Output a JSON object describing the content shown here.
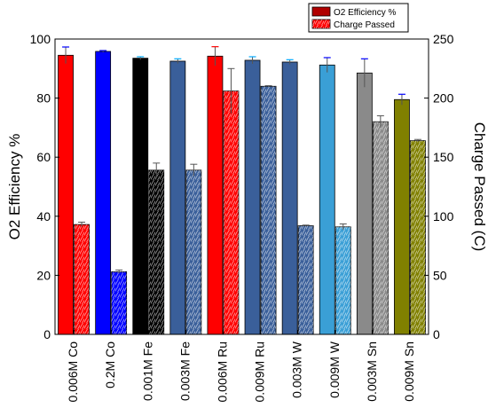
{
  "chart_data": {
    "type": "bar",
    "categories": [
      "0.006M Co",
      "0.2M Co",
      "0.001M Fe",
      "0.003M Fe",
      "0.006M Ru",
      "0.009M Ru",
      "0.003M W",
      "0.009M W",
      "0.003M Sn",
      "0.009M Sn"
    ],
    "series": [
      {
        "name": "O2 Efficiency %",
        "axis": "left",
        "values": [
          94.5,
          95.8,
          93.5,
          92.5,
          94.2,
          92.8,
          92.2,
          91.2,
          88.5,
          79.5
        ],
        "errors": [
          2.8,
          0.3,
          0.5,
          0.8,
          3.2,
          1.2,
          0.8,
          2.5,
          4.8,
          1.8
        ],
        "pattern": "solid"
      },
      {
        "name": "Charge Passed",
        "axis": "right",
        "values": [
          93,
          53,
          139,
          139,
          206,
          210,
          92,
          91,
          180,
          164
        ],
        "errors": [
          2,
          1.5,
          6,
          5,
          19,
          0.5,
          0.5,
          2.5,
          5,
          1
        ],
        "pattern": "hatched"
      }
    ],
    "bar_colors": [
      "#ff0000",
      "#0000ff",
      "#000000",
      "#3a5f9a",
      "#ff0000",
      "#3a5f9a",
      "#3a5f9a",
      "#3a9fd6",
      "#8a8a8a",
      "#808000"
    ],
    "ylabel": "O2 Efficiency %",
    "y2label": "Charge Passed (C)",
    "ylim": [
      0,
      100
    ],
    "y2lim": [
      0,
      250
    ],
    "yticks": [
      0,
      20,
      40,
      60,
      80,
      100
    ],
    "y2ticks": [
      0,
      50,
      100,
      150,
      200,
      250
    ],
    "grid": false,
    "legend_position": "top-right"
  }
}
